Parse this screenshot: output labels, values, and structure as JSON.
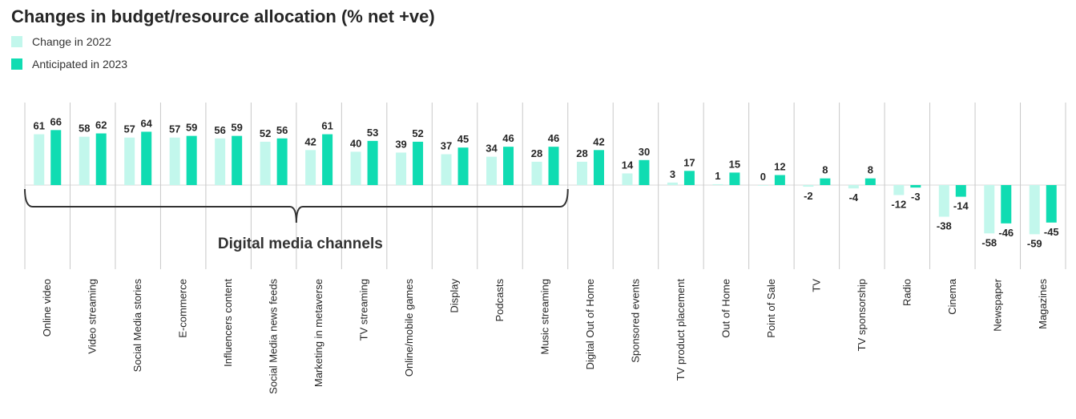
{
  "chart_data": {
    "type": "bar",
    "title": "Changes in budget/resource allocation (% net +ve)",
    "categories": [
      "Online video",
      "Video streaming",
      "Social Media stories",
      "E-commerce",
      "Influencers content",
      "Social Media news feeds",
      "Marketing in metaverse",
      "TV streaming",
      "Online/mobile games",
      "Display",
      "Podcasts",
      "Music streaming",
      "Digital Out of Home",
      "Sponsored events",
      "TV product placement",
      "Out of Home",
      "Point of Sale",
      "TV",
      "TV sponsorship",
      "Radio",
      "Cinema",
      "Newspaper",
      "Magazines"
    ],
    "series": [
      {
        "name": "Change in 2022",
        "color": "#c2f7ec",
        "values": [
          61,
          58,
          57,
          57,
          56,
          52,
          42,
          40,
          39,
          37,
          34,
          28,
          28,
          14,
          3,
          1,
          0,
          -2,
          -4,
          -12,
          -38,
          -58,
          -59
        ]
      },
      {
        "name": "Anticipated in 2023",
        "color": "#10dcb2",
        "values": [
          66,
          62,
          64,
          59,
          59,
          56,
          61,
          53,
          52,
          45,
          46,
          46,
          42,
          30,
          17,
          15,
          12,
          8,
          8,
          -3,
          -14,
          -46,
          -45
        ]
      }
    ],
    "annotation": {
      "text": "Digital media channels",
      "first_category": 0,
      "last_category": 11
    },
    "xlabel": "",
    "ylabel": "",
    "ylim": [
      -100,
      100
    ],
    "grid": false,
    "legend_position": "top-left"
  }
}
